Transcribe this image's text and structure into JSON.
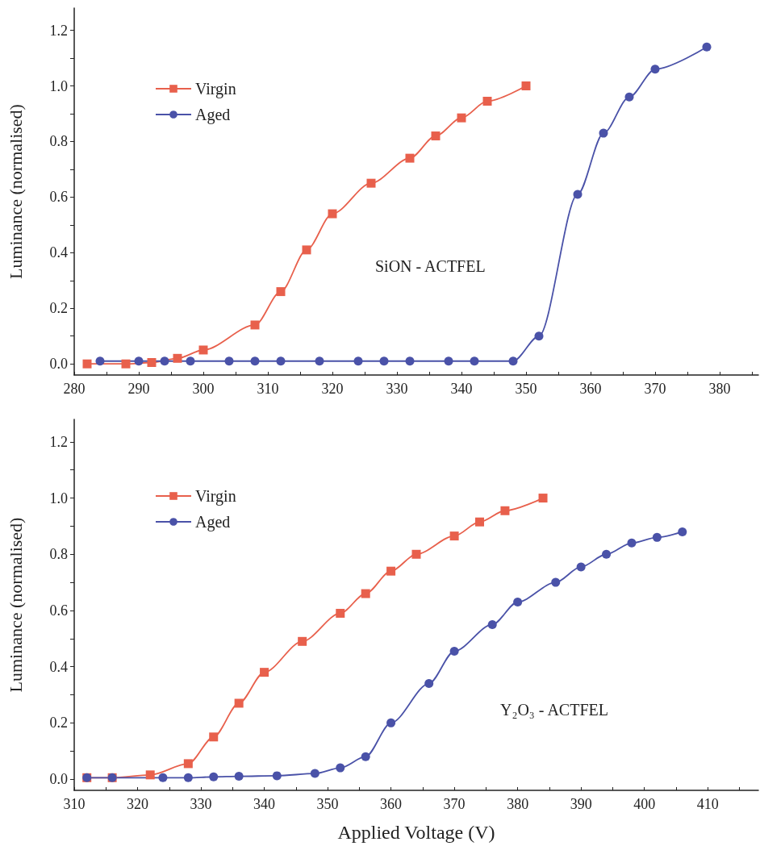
{
  "chart_data": [
    {
      "type": "line",
      "ylabel": "Luminance (normalised)",
      "annotations": [
        "SiON - ACTFEL"
      ],
      "xlim": [
        280,
        386
      ],
      "xticks": [
        280,
        {
          "value": 285,
          "label": null
        },
        290,
        {
          "value": 295,
          "label": null
        },
        300,
        {
          "value": 305,
          "label": null
        },
        310,
        {
          "value": 315,
          "label": null
        },
        320,
        {
          "value": 325,
          "label": null
        },
        330,
        {
          "value": 335,
          "label": null
        },
        340,
        {
          "value": 345,
          "label": null
        },
        350,
        {
          "value": 355,
          "label": null
        },
        360,
        {
          "value": 365,
          "label": null
        },
        370,
        {
          "value": 375,
          "label": null
        },
        380,
        {
          "value": 385,
          "label": null
        }
      ],
      "ylim": [
        -0.04,
        1.28
      ],
      "yticks": [
        {
          "value": 0,
          "label": "0.0"
        },
        {
          "value": 0.1,
          "label": null
        },
        0.2,
        {
          "value": 0.3,
          "label": null
        },
        0.4,
        {
          "value": 0.5,
          "label": null
        },
        0.6,
        {
          "value": 0.7,
          "label": null
        },
        0.8,
        {
          "value": 0.9,
          "label": null
        },
        {
          "value": 1,
          "label": "1.0"
        },
        {
          "value": 1.1,
          "label": null
        },
        1.2
      ],
      "grid": false,
      "legend": "top left",
      "line_style": "solid",
      "series": [
        {
          "name": "Virgin",
          "color": "#e8604c",
          "marker": "square",
          "x": [
            282,
            288,
            292,
            296,
            300,
            308,
            312,
            316,
            320,
            326,
            332,
            336,
            340,
            344,
            350
          ],
          "values": [
            0.0,
            0.0,
            0.005,
            0.02,
            0.05,
            0.14,
            0.26,
            0.41,
            0.54,
            0.65,
            0.74,
            0.82,
            0.885,
            0.945,
            1.0
          ]
        },
        {
          "name": "Aged",
          "color": "#4a52a8",
          "marker": "circle",
          "x": [
            284,
            290,
            294,
            298,
            304,
            308,
            312,
            318,
            324,
            328,
            332,
            338,
            342,
            348,
            352,
            358,
            362,
            366,
            370,
            378
          ],
          "values": [
            0.01,
            0.01,
            0.01,
            0.01,
            0.01,
            0.01,
            0.01,
            0.01,
            0.01,
            0.01,
            0.01,
            0.01,
            0.01,
            0.01,
            0.1,
            0.61,
            0.83,
            0.96,
            1.06,
            1.14
          ]
        }
      ]
    },
    {
      "type": "line",
      "xlabel": "Applied Voltage (V)",
      "ylabel": "Luminance (normalised)",
      "annotations": [
        "Y₂O₃ - ACTFEL"
      ],
      "xlim": [
        310,
        418
      ],
      "xticks": [
        310,
        {
          "value": 315,
          "label": null
        },
        320,
        {
          "value": 325,
          "label": null
        },
        330,
        {
          "value": 335,
          "label": null
        },
        340,
        {
          "value": 345,
          "label": null
        },
        350,
        {
          "value": 355,
          "label": null
        },
        360,
        {
          "value": 365,
          "label": null
        },
        370,
        {
          "value": 375,
          "label": null
        },
        380,
        {
          "value": 385,
          "label": null
        },
        390,
        {
          "value": 395,
          "label": null
        },
        400,
        {
          "value": 405,
          "label": null
        },
        410,
        {
          "value": 415,
          "label": null
        }
      ],
      "ylim": [
        -0.04,
        1.28
      ],
      "yticks": [
        {
          "value": 0,
          "label": "0.0"
        },
        {
          "value": 0.1,
          "label": null
        },
        0.2,
        {
          "value": 0.3,
          "label": null
        },
        0.4,
        {
          "value": 0.5,
          "label": null
        },
        0.6,
        {
          "value": 0.7,
          "label": null
        },
        0.8,
        {
          "value": 0.9,
          "label": null
        },
        {
          "value": 1,
          "label": "1.0"
        },
        {
          "value": 1.1,
          "label": null
        },
        1.2
      ],
      "grid": false,
      "legend": "top left",
      "line_style": "solid",
      "series": [
        {
          "name": "Virgin",
          "color": "#e8604c",
          "marker": "square",
          "x": [
            312,
            316,
            322,
            328,
            332,
            336,
            340,
            346,
            352,
            356,
            360,
            364,
            370,
            374,
            378,
            384
          ],
          "values": [
            0.005,
            0.005,
            0.015,
            0.055,
            0.15,
            0.27,
            0.38,
            0.49,
            0.59,
            0.66,
            0.74,
            0.8,
            0.865,
            0.915,
            0.955,
            1.0
          ]
        },
        {
          "name": "Aged",
          "color": "#4a52a8",
          "marker": "circle",
          "x": [
            312,
            316,
            324,
            328,
            332,
            336,
            342,
            348,
            352,
            356,
            360,
            366,
            370,
            376,
            380,
            386,
            390,
            394,
            398,
            402,
            406
          ],
          "values": [
            0.005,
            0.005,
            0.005,
            0.005,
            0.008,
            0.01,
            0.012,
            0.02,
            0.04,
            0.08,
            0.2,
            0.34,
            0.455,
            0.55,
            0.63,
            0.7,
            0.755,
            0.8,
            0.84,
            0.86,
            0.88
          ]
        }
      ]
    }
  ]
}
